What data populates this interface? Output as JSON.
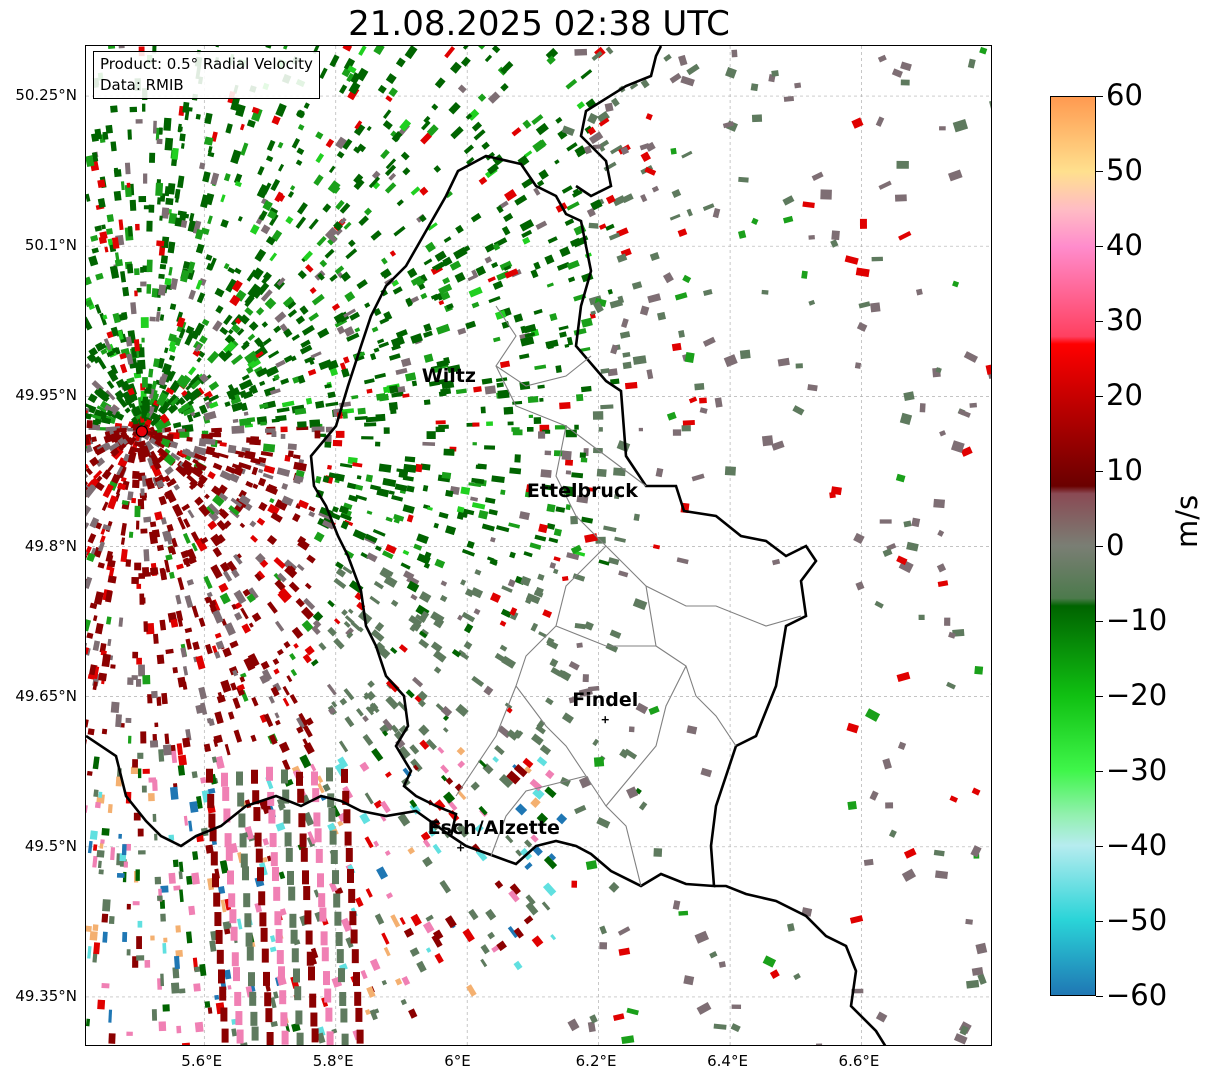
{
  "title": "21.08.2025 02:38 UTC",
  "info_box": {
    "line1": "Product: 0.5° Radial Velocity",
    "line2": "Data: RMIB"
  },
  "axes": {
    "lon_ticks": [
      {
        "value": 5.6,
        "label": "5.6°E"
      },
      {
        "value": 5.8,
        "label": "5.8°E"
      },
      {
        "value": 6.0,
        "label": "6°E"
      },
      {
        "value": 6.2,
        "label": "6.2°E"
      },
      {
        "value": 6.4,
        "label": "6.4°E"
      },
      {
        "value": 6.6,
        "label": "6.6°E"
      }
    ],
    "lat_ticks": [
      {
        "value": 50.25,
        "label": "50.25°N"
      },
      {
        "value": 50.1,
        "label": "50.1°N"
      },
      {
        "value": 49.95,
        "label": "49.95°N"
      },
      {
        "value": 49.8,
        "label": "49.8°N"
      },
      {
        "value": 49.65,
        "label": "49.65°N"
      },
      {
        "value": 49.5,
        "label": "49.5°N"
      },
      {
        "value": 49.35,
        "label": "49.35°N"
      }
    ],
    "lon_range": [
      5.42,
      6.8
    ],
    "lat_range": [
      49.3,
      50.3
    ]
  },
  "cities": [
    {
      "name": "Wiltz",
      "lon": 5.94,
      "lat": 49.965,
      "marker": false
    },
    {
      "name": "Ettelbruck",
      "lon": 6.1,
      "lat": 49.85,
      "marker": false
    },
    {
      "name": "Findel",
      "lon": 6.21,
      "lat": 49.627,
      "marker": true
    },
    {
      "name": "Esch/Alzette",
      "lon": 5.99,
      "lat": 49.499,
      "marker": true
    }
  ],
  "radar_site": {
    "lon": 5.505,
    "lat": 49.915,
    "color": "#e8000b"
  },
  "colorbar": {
    "unit": "m/s",
    "min": -60,
    "max": 60,
    "ticks": [
      {
        "value": 60,
        "label": "60"
      },
      {
        "value": 50,
        "label": "50"
      },
      {
        "value": 40,
        "label": "40"
      },
      {
        "value": 30,
        "label": "30"
      },
      {
        "value": 20,
        "label": "20"
      },
      {
        "value": 10,
        "label": "10"
      },
      {
        "value": 0,
        "label": "0"
      },
      {
        "value": -10,
        "label": "−10"
      },
      {
        "value": -20,
        "label": "−20"
      },
      {
        "value": -30,
        "label": "−30"
      },
      {
        "value": -40,
        "label": "−40"
      },
      {
        "value": -50,
        "label": "−50"
      },
      {
        "value": -60,
        "label": "−60"
      }
    ],
    "color_stops": [
      {
        "value": -60,
        "color": "#1f77b4"
      },
      {
        "value": -50,
        "color": "#2ad4d8"
      },
      {
        "value": -40,
        "color": "#b6ecef"
      },
      {
        "value": -36,
        "color": "#93f0b0"
      },
      {
        "value": -30,
        "color": "#3ff64a"
      },
      {
        "value": -20,
        "color": "#10c012"
      },
      {
        "value": -8,
        "color": "#006400"
      },
      {
        "value": -7,
        "color": "#4c7a4c"
      },
      {
        "value": 0,
        "color": "#7a7e74"
      },
      {
        "value": 7,
        "color": "#8a4a54"
      },
      {
        "value": 8,
        "color": "#6a0000"
      },
      {
        "value": 20,
        "color": "#c70000"
      },
      {
        "value": 27,
        "color": "#ff0000"
      },
      {
        "value": 28,
        "color": "#ff4060"
      },
      {
        "value": 40,
        "color": "#ff8ccc"
      },
      {
        "value": 45,
        "color": "#ffbcc4"
      },
      {
        "value": 50,
        "color": "#ffe08e"
      },
      {
        "value": 60,
        "color": "#ff9a50"
      }
    ]
  },
  "colors": {
    "border": "#000000",
    "canton_lines": "#808080",
    "grid": "#b0b0b0",
    "green_strong": "#006400",
    "green_mid": "#1aa01a",
    "gray_green": "#5e7a5e",
    "gray_purple": "#7e6e74",
    "dark_red": "#8b0000",
    "red": "#e00000",
    "pink": "#f080b4",
    "cyan": "#60e0e0",
    "orange": "#f4b070",
    "blue": "#1f77b4"
  }
}
